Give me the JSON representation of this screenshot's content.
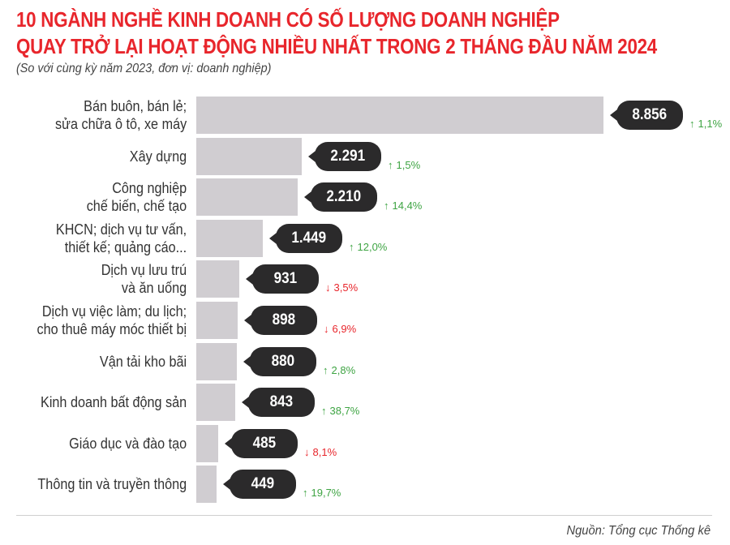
{
  "header": {
    "title_line1": "10 NGÀNH NGHỀ KINH DOANH CÓ SỐ LƯỢNG DOANH NGHIỆP",
    "title_line2": "QUAY TRỞ LẠI HOẠT ĐỘNG NHIỀU NHẤT TRONG 2 THÁNG ĐẦU NĂM 2024",
    "subtitle": "(So với cùng kỳ năm 2023, đơn vị: doanh nghiệp)"
  },
  "colors": {
    "title": "#e8262c",
    "bar": "#d0cdd1",
    "bubble": "#2b2a2b",
    "increase": "#3ea443",
    "decrease": "#e8262c"
  },
  "icons": {
    "up": "↑",
    "down": "↓"
  },
  "footer": {
    "source": "Nguồn: Tổng cục Thống kê"
  },
  "chart_data": {
    "type": "bar",
    "orientation": "horizontal",
    "title": "10 NGÀNH NGHỀ KINH DOANH CÓ SỐ LƯỢNG DOANH NGHIỆP QUAY TRỞ LẠI HOẠT ĐỘNG NHIỀU NHẤT TRONG 2 THÁNG ĐẦU NĂM 2024",
    "subtitle": "(So với cùng kỳ năm 2023, đơn vị: doanh nghiệp)",
    "xlabel": "",
    "ylabel": "",
    "unit": "doanh nghiệp",
    "grid": false,
    "legend": "none",
    "categories": [
      "Bán buôn, bán lẻ;\nsửa chữa ô tô, xe máy",
      "Xây dựng",
      "Công nghiệp\nchế biến, chế tạo",
      "KHCN; dịch vụ tư vấn,\nthiết kế; quảng cáo...",
      "Dịch vụ lưu trú\nvà ăn uống",
      "Dịch vụ việc làm; du lịch;\ncho thuê máy móc thiết bị",
      "Vận tải kho bãi",
      "Kinh doanh bất động sản",
      "Giáo dục và đào tạo",
      "Thông tin và truyền thông"
    ],
    "values": [
      8856,
      2291,
      2210,
      1449,
      931,
      898,
      880,
      843,
      485,
      449
    ],
    "value_labels": [
      "8.856",
      "2.291",
      "2.210",
      "1.449",
      "931",
      "898",
      "880",
      "843",
      "485",
      "449"
    ],
    "change_vs_2023": [
      {
        "direction": "up",
        "label": "1,1%",
        "value": 1.1
      },
      {
        "direction": "up",
        "label": "1,5%",
        "value": 1.5
      },
      {
        "direction": "up",
        "label": "14,4%",
        "value": 14.4
      },
      {
        "direction": "up",
        "label": "12,0%",
        "value": 12.0
      },
      {
        "direction": "down",
        "label": "3,5%",
        "value": -3.5
      },
      {
        "direction": "down",
        "label": "6,9%",
        "value": -6.9
      },
      {
        "direction": "up",
        "label": "2,8%",
        "value": 2.8
      },
      {
        "direction": "up",
        "label": "38,7%",
        "value": 38.7
      },
      {
        "direction": "down",
        "label": "8,1%",
        "value": -8.1
      },
      {
        "direction": "up",
        "label": "19,7%",
        "value": 19.7
      }
    ],
    "source": "Nguồn: Tổng cục Thống kê"
  }
}
